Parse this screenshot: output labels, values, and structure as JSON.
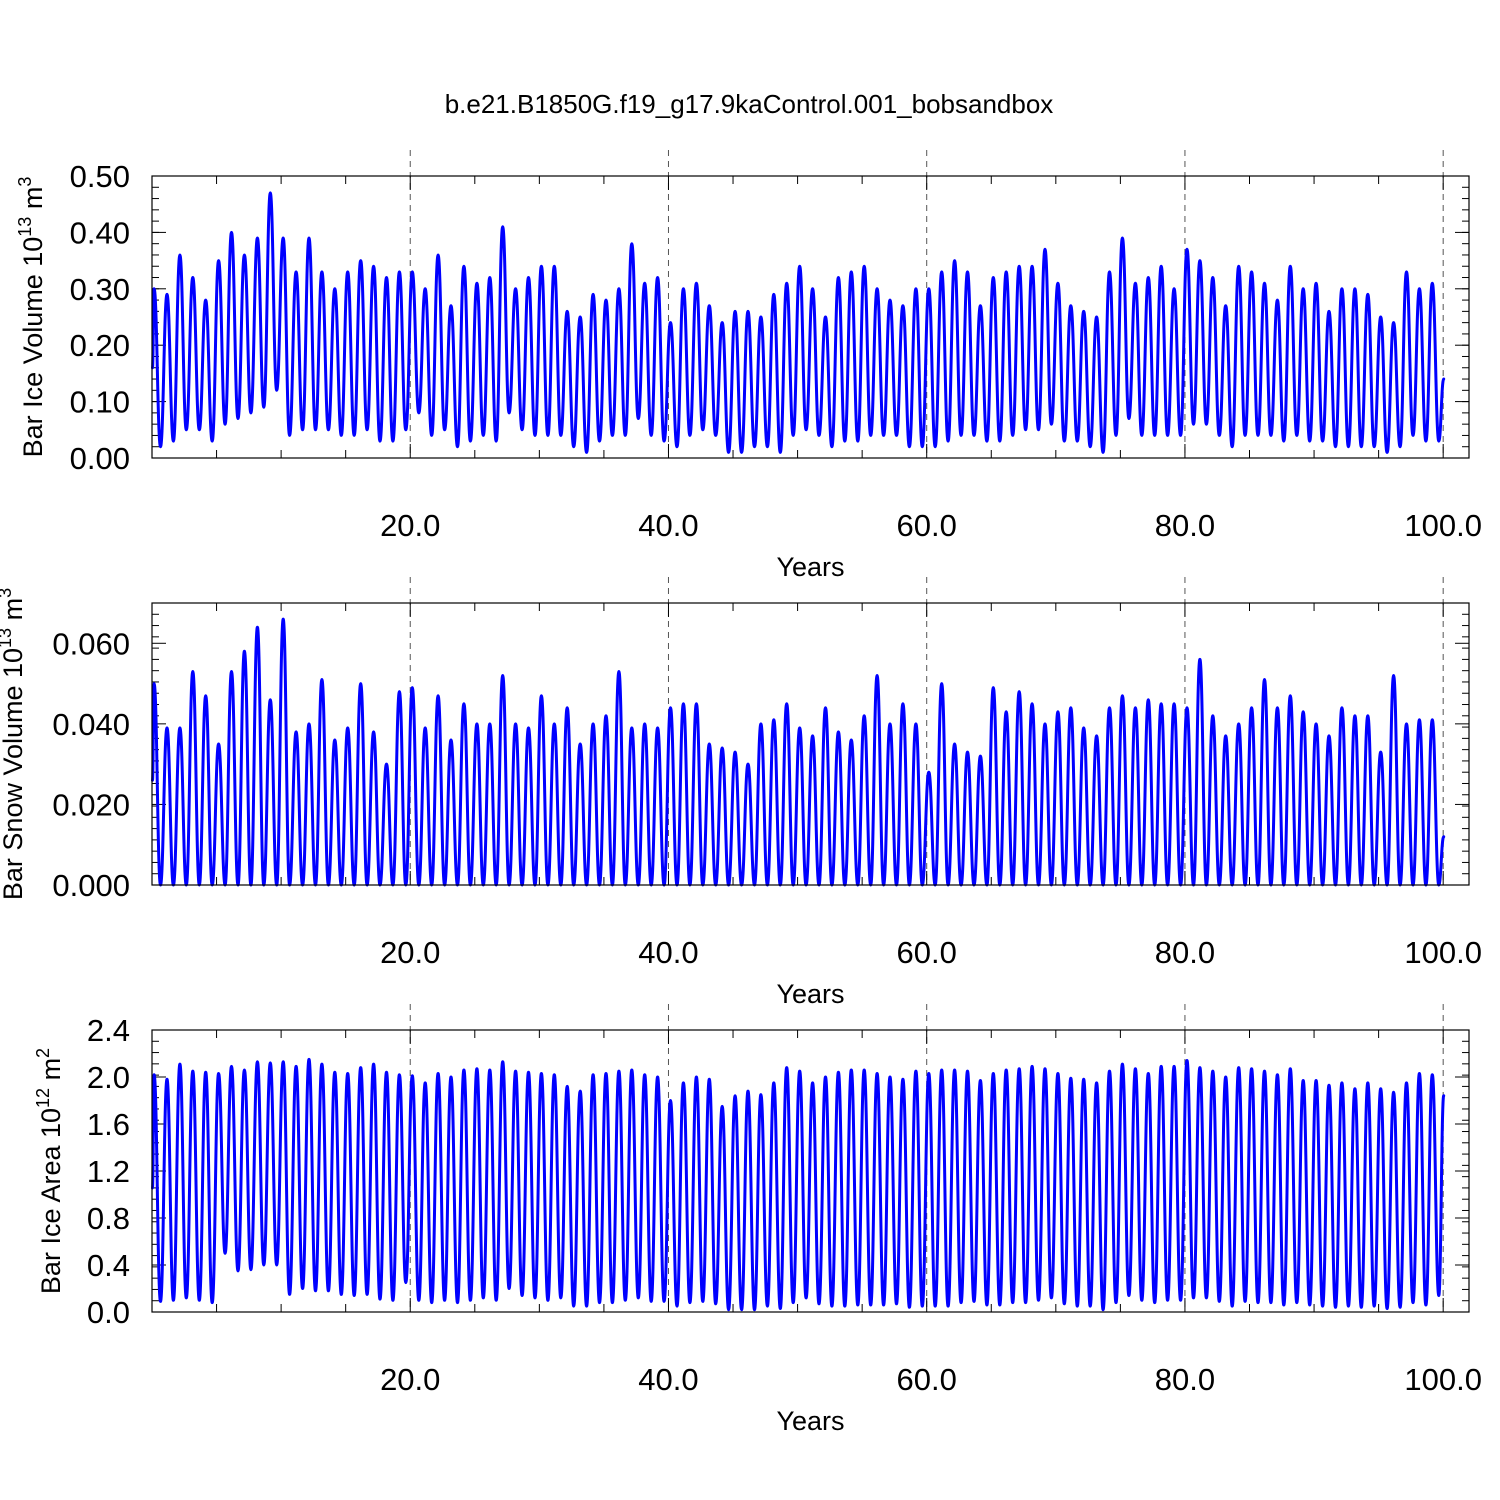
{
  "figure": {
    "title": "b.e21.B1850G.f19_g17.9kaControl.001_bobsandbox",
    "line_color": "#0000ff"
  },
  "chart_data": [
    {
      "type": "line",
      "title": "",
      "xlabel": "Years",
      "ylabel": "Bar Ice Volume 10",
      "ylabel_exp": "13",
      "ylabel_unit": " m",
      "ylabel_unit_exp": "3",
      "xlim": [
        0,
        102
      ],
      "ylim": [
        0,
        0.5
      ],
      "x_ticks": [
        20,
        40,
        60,
        80,
        100
      ],
      "x_tick_labels": [
        "20.0",
        "40.0",
        "60.0",
        "80.0",
        "100.0"
      ],
      "y_ticks": [
        0,
        0.1,
        0.2,
        0.3,
        0.4,
        0.5
      ],
      "y_tick_labels": [
        "0.00",
        "0.10",
        "0.20",
        "0.30",
        "0.40",
        "0.50"
      ],
      "grid": "dashed vertical at major x ticks",
      "series": [
        {
          "name": "",
          "color": "#0000ff",
          "x_start": 0.04,
          "x_step": 1.0,
          "annual_max": [
            0.3,
            0.29,
            0.36,
            0.32,
            0.28,
            0.35,
            0.4,
            0.36,
            0.39,
            0.47,
            0.39,
            0.33,
            0.39,
            0.33,
            0.3,
            0.33,
            0.35,
            0.34,
            0.32,
            0.33,
            0.33,
            0.3,
            0.36,
            0.27,
            0.34,
            0.31,
            0.32,
            0.41,
            0.3,
            0.32,
            0.34,
            0.34,
            0.26,
            0.25,
            0.29,
            0.28,
            0.3,
            0.38,
            0.31,
            0.32,
            0.24,
            0.3,
            0.31,
            0.27,
            0.24,
            0.26,
            0.26,
            0.25,
            0.29,
            0.31,
            0.34,
            0.3,
            0.25,
            0.32,
            0.33,
            0.34,
            0.3,
            0.28,
            0.27,
            0.3,
            0.3,
            0.33,
            0.35,
            0.33,
            0.27,
            0.32,
            0.33,
            0.34,
            0.34,
            0.37,
            0.31,
            0.27,
            0.26,
            0.25,
            0.33,
            0.39,
            0.31,
            0.32,
            0.34,
            0.3,
            0.37,
            0.35,
            0.32,
            0.27,
            0.34,
            0.33,
            0.31,
            0.28,
            0.34,
            0.3,
            0.31,
            0.26,
            0.3,
            0.3,
            0.29,
            0.25,
            0.24,
            0.33,
            0.3,
            0.31
          ],
          "annual_min": [
            0.02,
            0.03,
            0.05,
            0.05,
            0.03,
            0.06,
            0.07,
            0.08,
            0.09,
            0.12,
            0.04,
            0.05,
            0.05,
            0.05,
            0.04,
            0.04,
            0.05,
            0.03,
            0.03,
            0.05,
            0.08,
            0.04,
            0.05,
            0.02,
            0.03,
            0.04,
            0.03,
            0.08,
            0.05,
            0.04,
            0.04,
            0.04,
            0.02,
            0.01,
            0.03,
            0.04,
            0.04,
            0.07,
            0.04,
            0.03,
            0.02,
            0.04,
            0.05,
            0.04,
            0.01,
            0.01,
            0.02,
            0.02,
            0.01,
            0.04,
            0.05,
            0.04,
            0.02,
            0.03,
            0.03,
            0.04,
            0.04,
            0.04,
            0.02,
            0.02,
            0.02,
            0.03,
            0.04,
            0.04,
            0.03,
            0.03,
            0.04,
            0.05,
            0.05,
            0.06,
            0.03,
            0.03,
            0.02,
            0.01,
            0.04,
            0.07,
            0.04,
            0.04,
            0.04,
            0.04,
            0.06,
            0.06,
            0.04,
            0.02,
            0.04,
            0.04,
            0.04,
            0.03,
            0.04,
            0.03,
            0.03,
            0.02,
            0.02,
            0.02,
            0.02,
            0.01,
            0.02,
            0.04,
            0.03,
            0.03
          ],
          "end_value": 0.14
        }
      ]
    },
    {
      "type": "line",
      "title": "",
      "xlabel": "Years",
      "ylabel": "Bar Snow Volume 10",
      "ylabel_exp": "13",
      "ylabel_unit": " m",
      "ylabel_unit_exp": "3",
      "xlim": [
        0,
        102
      ],
      "ylim": [
        0,
        0.07
      ],
      "x_ticks": [
        20,
        40,
        60,
        80,
        100
      ],
      "x_tick_labels": [
        "20.0",
        "40.0",
        "60.0",
        "80.0",
        "100.0"
      ],
      "y_ticks": [
        0,
        0.02,
        0.04,
        0.06
      ],
      "y_tick_labels": [
        "0.000",
        "0.020",
        "0.040",
        "0.060"
      ],
      "grid": "dashed vertical at major x ticks",
      "series": [
        {
          "name": "",
          "color": "#0000ff",
          "x_start": 0.04,
          "x_step": 1.0,
          "annual_max": [
            0.05,
            0.039,
            0.039,
            0.053,
            0.047,
            0.035,
            0.053,
            0.058,
            0.064,
            0.046,
            0.066,
            0.038,
            0.04,
            0.051,
            0.036,
            0.039,
            0.05,
            0.038,
            0.03,
            0.048,
            0.049,
            0.039,
            0.047,
            0.036,
            0.045,
            0.04,
            0.04,
            0.052,
            0.04,
            0.039,
            0.047,
            0.04,
            0.044,
            0.035,
            0.04,
            0.042,
            0.053,
            0.039,
            0.04,
            0.039,
            0.044,
            0.045,
            0.045,
            0.035,
            0.034,
            0.033,
            0.03,
            0.04,
            0.041,
            0.045,
            0.039,
            0.037,
            0.044,
            0.038,
            0.036,
            0.042,
            0.052,
            0.04,
            0.045,
            0.04,
            0.028,
            0.05,
            0.035,
            0.033,
            0.032,
            0.049,
            0.043,
            0.048,
            0.045,
            0.04,
            0.043,
            0.044,
            0.039,
            0.037,
            0.044,
            0.047,
            0.044,
            0.046,
            0.045,
            0.045,
            0.044,
            0.056,
            0.042,
            0.037,
            0.04,
            0.044,
            0.051,
            0.044,
            0.047,
            0.043,
            0.04,
            0.037,
            0.044,
            0.042,
            0.042,
            0.033,
            0.052,
            0.04,
            0.041,
            0.041
          ],
          "annual_min": [
            0,
            0,
            0,
            0,
            0,
            0,
            0,
            0,
            0,
            0,
            0,
            0,
            0,
            0,
            0,
            0,
            0,
            0,
            0,
            0,
            0,
            0,
            0,
            0,
            0,
            0,
            0,
            0,
            0,
            0,
            0,
            0,
            0,
            0,
            0,
            0,
            0,
            0,
            0,
            0,
            0,
            0,
            0,
            0,
            0,
            0,
            0,
            0,
            0,
            0,
            0,
            0,
            0,
            0,
            0,
            0,
            0,
            0,
            0,
            0,
            0,
            0,
            0,
            0,
            0,
            0,
            0,
            0,
            0,
            0,
            0,
            0,
            0,
            0,
            0,
            0,
            0,
            0,
            0,
            0,
            0,
            0,
            0,
            0,
            0,
            0,
            0,
            0,
            0,
            0,
            0,
            0,
            0,
            0,
            0,
            0,
            0,
            0,
            0,
            0
          ],
          "start_value": 0.026,
          "end_value": 0.012
        }
      ]
    },
    {
      "type": "line",
      "title": "",
      "xlabel": "Years",
      "ylabel": "Bar Ice Area 10",
      "ylabel_exp": "12",
      "ylabel_unit": " m",
      "ylabel_unit_exp": "2",
      "xlim": [
        0,
        102
      ],
      "ylim": [
        0,
        2.4
      ],
      "x_ticks": [
        20,
        40,
        60,
        80,
        100
      ],
      "x_tick_labels": [
        "20.0",
        "40.0",
        "60.0",
        "80.0",
        "100.0"
      ],
      "y_ticks": [
        0,
        0.4,
        0.8,
        1.2,
        1.6,
        2.0,
        2.4
      ],
      "y_tick_labels": [
        "0.0",
        "0.4",
        "0.8",
        "1.2",
        "1.6",
        "2.0",
        "2.4"
      ],
      "grid": "dashed vertical at major x ticks",
      "series": [
        {
          "name": "",
          "color": "#0000ff",
          "x_start": 0.04,
          "x_step": 1.0,
          "annual_max": [
            2.02,
            1.98,
            2.11,
            2.05,
            2.04,
            2.03,
            2.09,
            2.06,
            2.13,
            2.12,
            2.13,
            2.09,
            2.15,
            2.11,
            2.04,
            2.03,
            2.08,
            2.11,
            2.04,
            2.02,
            2.01,
            1.95,
            2.03,
            2.0,
            2.06,
            2.07,
            2.06,
            2.13,
            2.05,
            2.04,
            2.03,
            2.02,
            1.92,
            1.88,
            2.02,
            2.03,
            2.05,
            2.06,
            2.02,
            2.0,
            1.8,
            1.95,
            2.0,
            1.98,
            1.75,
            1.84,
            1.88,
            1.85,
            1.95,
            2.08,
            2.05,
            1.95,
            2.0,
            2.04,
            2.06,
            2.06,
            2.03,
            2.0,
            1.98,
            2.05,
            2.03,
            2.06,
            2.06,
            2.05,
            1.97,
            2.03,
            2.06,
            2.07,
            2.09,
            2.07,
            2.03,
            1.99,
            1.98,
            1.95,
            2.05,
            2.11,
            2.07,
            2.03,
            2.09,
            2.09,
            2.14,
            2.08,
            2.05,
            2.0,
            2.08,
            2.07,
            2.05,
            2.02,
            2.07,
            1.97,
            1.97,
            1.93,
            1.95,
            1.9,
            1.95,
            1.9,
            1.87,
            1.95,
            2.03,
            2.02
          ],
          "annual_min": [
            0.09,
            0.1,
            0.12,
            0.1,
            0.08,
            0.5,
            0.35,
            0.36,
            0.4,
            0.4,
            0.15,
            0.2,
            0.18,
            0.18,
            0.15,
            0.14,
            0.15,
            0.11,
            0.1,
            0.25,
            0.1,
            0.08,
            0.1,
            0.08,
            0.1,
            0.12,
            0.1,
            0.2,
            0.14,
            0.12,
            0.1,
            0.12,
            0.05,
            0.05,
            0.08,
            0.08,
            0.1,
            0.12,
            0.09,
            0.09,
            0.05,
            0.08,
            0.09,
            0.07,
            0.02,
            0.02,
            0.02,
            0.05,
            0.03,
            0.08,
            0.12,
            0.07,
            0.05,
            0.05,
            0.06,
            0.06,
            0.06,
            0.07,
            0.04,
            0.05,
            0.05,
            0.05,
            0.08,
            0.09,
            0.06,
            0.06,
            0.08,
            0.08,
            0.1,
            0.12,
            0.07,
            0.05,
            0.05,
            0.02,
            0.08,
            0.14,
            0.1,
            0.08,
            0.1,
            0.1,
            0.12,
            0.12,
            0.09,
            0.05,
            0.09,
            0.08,
            0.08,
            0.06,
            0.08,
            0.06,
            0.05,
            0.04,
            0.05,
            0.04,
            0.05,
            0.03,
            0.04,
            0.08,
            0.06,
            0.14
          ],
          "end_value": 1.84
        }
      ]
    }
  ]
}
